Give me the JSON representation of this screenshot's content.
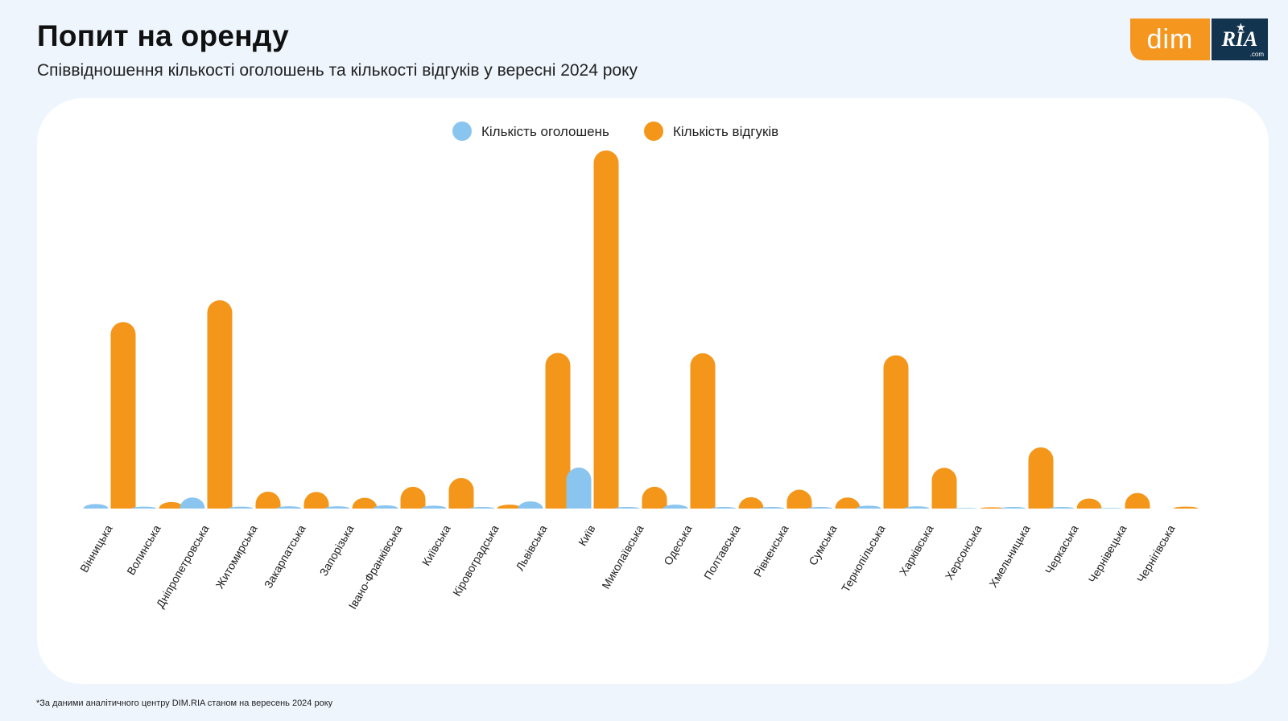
{
  "header": {
    "title": "Попит на оренду",
    "subtitle": "Співвідношення кількості оголошень та кількості відгуків у вересні 2024 року"
  },
  "logo": {
    "dim_text": "dim",
    "ria_text": "RIA",
    "ria_star": "★",
    "ria_suffix": ".com"
  },
  "footnote": "*За даними аналітичного центру DIM.RIA станом на вересень 2024 року",
  "colors": {
    "listings": "#8ac5f0",
    "responses": "#f49619",
    "background": "#eef5fd",
    "brand_orange": "#f5961e",
    "brand_navy": "#12344e"
  },
  "chart_data": {
    "type": "bar",
    "title": "",
    "xlabel": "",
    "ylabel": "",
    "ylim": [
      0,
      1100
    ],
    "grid": false,
    "legend_position": "top-center",
    "categories": [
      "Вінницька",
      "Волинська",
      "Дніпропетровська",
      "Житомирська",
      "Закарпатська",
      "Запорізька",
      "Івано-Франківська",
      "Київська",
      "Кіровоградська",
      "Львівська",
      "Київ",
      "Миколаївська",
      "Одеська",
      "Полтавська",
      "Рівненська",
      "Сумська",
      "Тернопільська",
      "Харківська",
      "Херсонська",
      "Хмельницька",
      "Черкаська",
      "Чернівецька",
      "Чернігівська"
    ],
    "series": [
      {
        "name": "Кількість оголошень",
        "values": [
          14,
          6,
          34,
          6,
          7,
          7,
          10,
          9,
          5,
          22,
          126,
          5,
          12,
          5,
          5,
          5,
          9,
          7,
          2,
          5,
          5,
          2,
          0
        ]
      },
      {
        "name": "Кількість відгуків",
        "values": [
          573,
          20,
          640,
          52,
          51,
          33,
          67,
          94,
          12,
          478,
          1100,
          67,
          477,
          35,
          58,
          34,
          471,
          125,
          4,
          188,
          31,
          48,
          6
        ]
      }
    ]
  }
}
